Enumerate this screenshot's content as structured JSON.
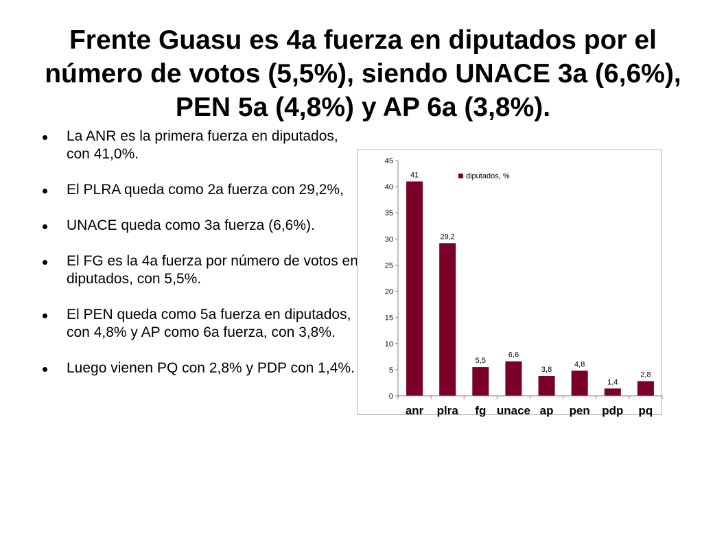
{
  "slide": {
    "title": "Frente Guasu es 4a fuerza en diputados por el número de votos (5,5%), siendo UNACE 3a (6,6%), PEN 5a (4,8%) y AP 6a (3,8%).",
    "bullets": [
      "La ANR es la primera fuerza en diputados, con 41,0%.",
      "El PLRA queda como 2a fuerza con 29,2%,",
      "UNACE queda como 3a fuerza (6,6%).",
      "El FG es la 4a fuerza por número de votos en diputados, con 5,5%.",
      "El PEN queda como 5a fuerza en diputados, con 4,8% y AP como 6a fuerza, con 3,8%.",
      "Luego vienen PQ con 2,8% y PDP con 1,4%."
    ]
  },
  "chart_data": {
    "type": "bar",
    "categories": [
      "anr",
      "plra",
      "fg",
      "unace",
      "ap",
      "pen",
      "pdp",
      "pq"
    ],
    "series": [
      {
        "name": "diputados, %",
        "values": [
          41,
          29.2,
          5.5,
          6.6,
          3.8,
          4.8,
          1.4,
          2.8
        ],
        "labels": [
          "41",
          "29,2",
          "5,5",
          "6,6",
          "3,8",
          "4,8",
          "1,4",
          "2,8"
        ]
      }
    ],
    "ylim": [
      0,
      45
    ],
    "yticks": [
      0,
      5,
      10,
      15,
      20,
      25,
      30,
      35,
      40,
      45
    ],
    "grid": false,
    "legend_position": "top-right",
    "colors": {
      "bar": "#7b0026",
      "axis": "#808080",
      "frame": "#b3b3b3"
    }
  }
}
